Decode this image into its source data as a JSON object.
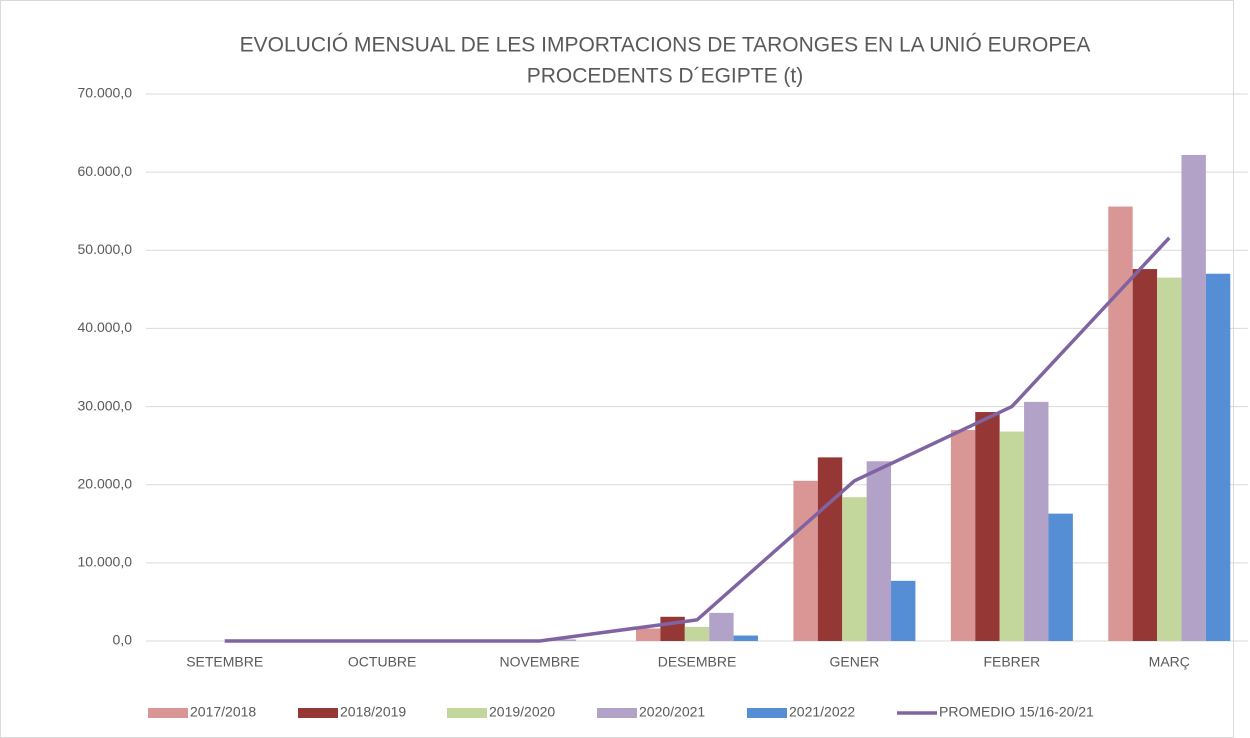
{
  "chart_data": {
    "type": "bar",
    "title": [
      "EVOLUCIÓ MENSUAL DE LES IMPORTACIONS DE TARONGES EN LA UNIÓ EUROPEA",
      "PROCEDENTS D´EGIPTE (t)"
    ],
    "categories": [
      "SETEMBRE",
      "OCTUBRE",
      "NOVEMBRE",
      "DESEMBRE",
      "GENER",
      "FEBRER",
      "MARÇ"
    ],
    "series": [
      {
        "name": "2017/2018",
        "color": "#d99694",
        "values": [
          0,
          0,
          0,
          1600,
          20500,
          27000,
          55600
        ]
      },
      {
        "name": "2018/2019",
        "color": "#953735",
        "values": [
          0,
          0,
          0,
          3100,
          23500,
          29300,
          47600
        ]
      },
      {
        "name": "2019/2020",
        "color": "#c3d69b",
        "values": [
          0,
          0,
          0,
          1800,
          18400,
          26800,
          46500
        ]
      },
      {
        "name": "2020/2021",
        "color": "#b3a2c7",
        "values": [
          0,
          0,
          200,
          3600,
          23000,
          30600,
          62200
        ]
      },
      {
        "name": "2021/2022",
        "color": "#558ed5",
        "values": [
          0,
          0,
          0,
          700,
          7700,
          16300,
          47000
        ]
      },
      {
        "name": "PROMEDIO 15/16-20/21",
        "color": "#8064a2",
        "type": "line",
        "values": [
          0,
          0,
          0,
          2700,
          20500,
          30000,
          51600
        ]
      }
    ],
    "ylim": [
      0,
      70000
    ],
    "yticks": [
      {
        "value": 0,
        "label": "0,0"
      },
      {
        "value": 10000,
        "label": "10.000,0"
      },
      {
        "value": 20000,
        "label": "20.000,0"
      },
      {
        "value": 30000,
        "label": "30.000,0"
      },
      {
        "value": 40000,
        "label": "40.000,0"
      },
      {
        "value": 50000,
        "label": "50.000,0"
      },
      {
        "value": 60000,
        "label": "60.000,0"
      },
      {
        "value": 70000,
        "label": "70.000,0"
      }
    ],
    "grid": true,
    "legend": "bottom"
  }
}
